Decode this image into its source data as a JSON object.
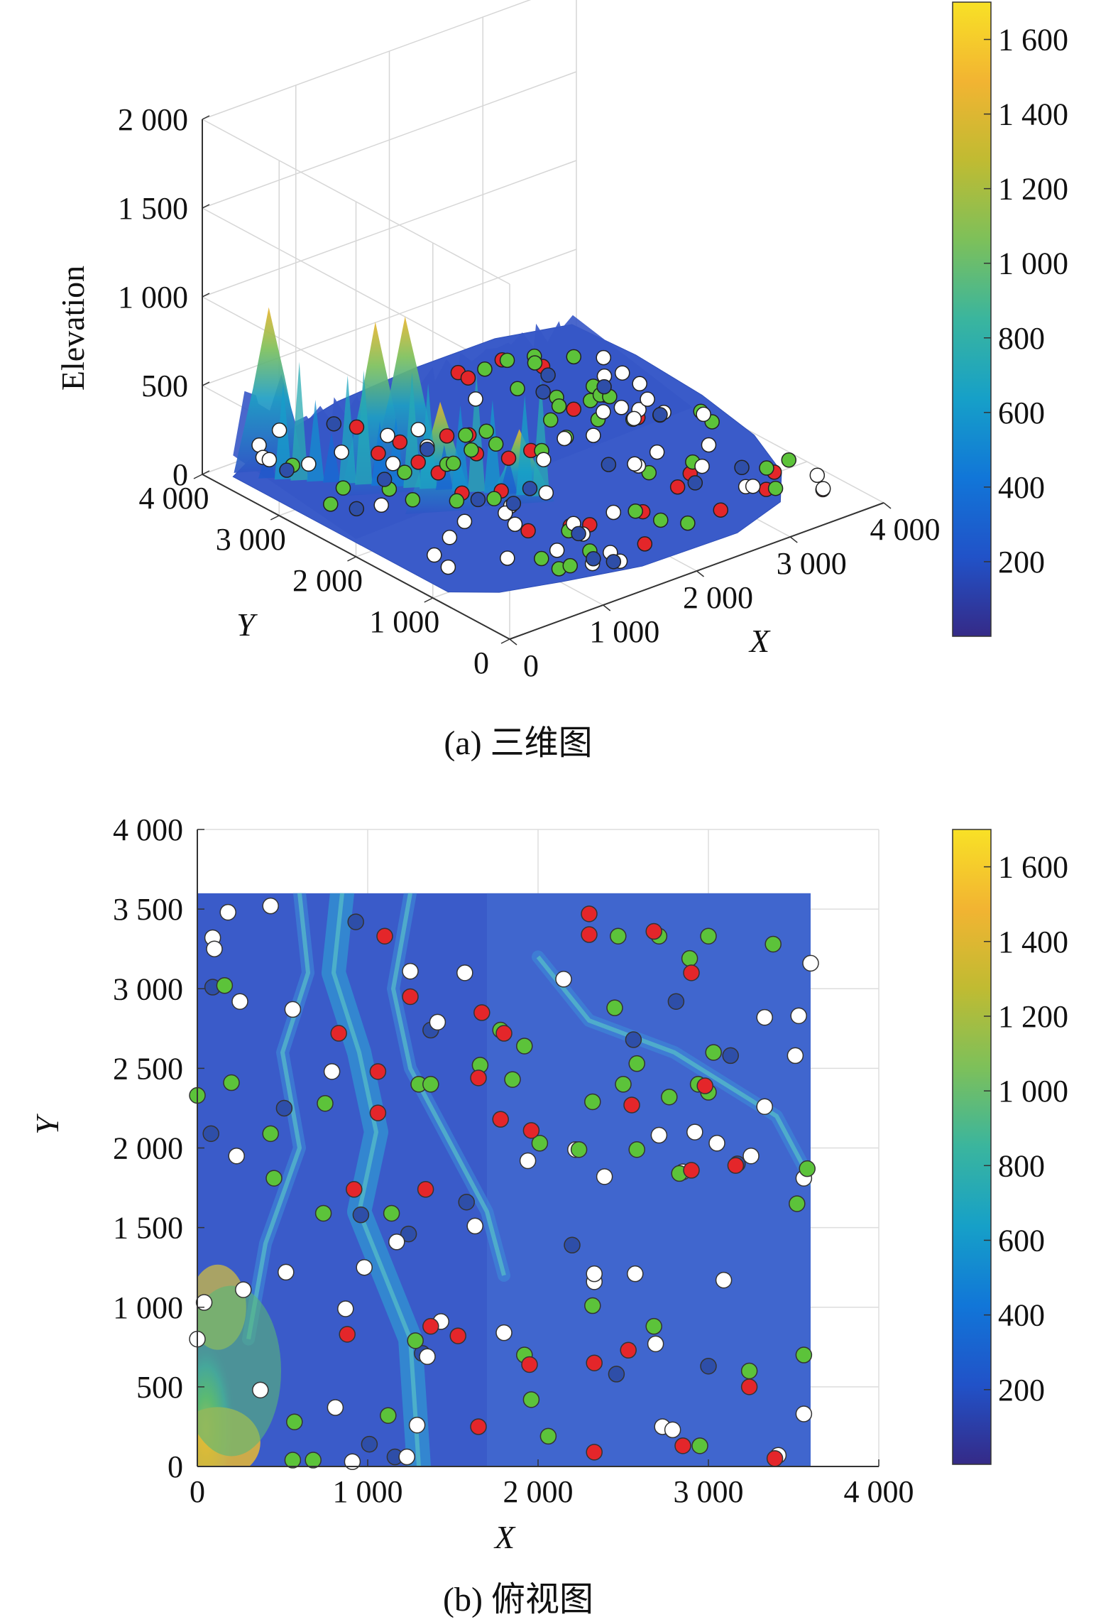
{
  "colors": {
    "colormap": [
      "#352a87",
      "#2152c8",
      "#1176d8",
      "#16a0c8",
      "#3ab59e",
      "#7dc05a",
      "#c0bb32",
      "#f2b432",
      "#f8e126"
    ],
    "marker_red": "#e4262a",
    "marker_green": "#5cc33a",
    "marker_white": "#ffffff",
    "marker_blue": "#2e4ea8",
    "terrain_base": "#3a5bc9"
  },
  "chart_data": [
    {
      "type": "surface3d",
      "caption": "(a) 三维图",
      "xlabel": "X",
      "ylabel": "Y",
      "zlabel": "Elevation",
      "xlim": [
        0,
        4000
      ],
      "ylim": [
        0,
        4000
      ],
      "zlim": [
        0,
        2000
      ],
      "xticks": [
        {
          "v": 0,
          "label": "0"
        },
        {
          "v": 1000,
          "label": "1 000"
        },
        {
          "v": 2000,
          "label": "2 000"
        },
        {
          "v": 3000,
          "label": "3 000"
        },
        {
          "v": 4000,
          "label": "4 000"
        }
      ],
      "yticks": [
        {
          "v": 0,
          "label": "0"
        },
        {
          "v": 1000,
          "label": "1 000"
        },
        {
          "v": 2000,
          "label": "2 000"
        },
        {
          "v": 3000,
          "label": "3 000"
        },
        {
          "v": 4000,
          "label": "4 000"
        }
      ],
      "zticks": [
        {
          "v": 0,
          "label": "0"
        },
        {
          "v": 500,
          "label": "500"
        },
        {
          "v": 1000,
          "label": "1 000"
        },
        {
          "v": 1500,
          "label": "1 500"
        },
        {
          "v": 2000,
          "label": "2 000"
        }
      ],
      "colorbar": {
        "range": [
          0,
          1700
        ],
        "ticks": [
          {
            "v": 200,
            "label": "200"
          },
          {
            "v": 400,
            "label": "400"
          },
          {
            "v": 600,
            "label": "600"
          },
          {
            "v": 800,
            "label": "800"
          },
          {
            "v": 1000,
            "label": "1 000"
          },
          {
            "v": 1200,
            "label": "1 200"
          },
          {
            "v": 1400,
            "label": "1 400"
          },
          {
            "v": 1600,
            "label": "1 600"
          }
        ]
      },
      "peaks": [
        {
          "x": 300,
          "y": 3500,
          "z": 1000
        },
        {
          "x": 700,
          "y": 2600,
          "z": 1050
        },
        {
          "x": 1100,
          "y": 2700,
          "z": 980
        },
        {
          "x": 900,
          "y": 2000,
          "z": 700
        },
        {
          "x": 1500,
          "y": 1700,
          "z": 500
        }
      ]
    },
    {
      "type": "scatter",
      "caption": "(b) 俯视图",
      "xlabel": "X",
      "ylabel": "Y",
      "xlim": [
        0,
        4000
      ],
      "ylim": [
        0,
        4000
      ],
      "xticks": [
        {
          "v": 0,
          "label": "0"
        },
        {
          "v": 1000,
          "label": "1 000"
        },
        {
          "v": 2000,
          "label": "2 000"
        },
        {
          "v": 3000,
          "label": "3 000"
        },
        {
          "v": 4000,
          "label": "4 000"
        }
      ],
      "yticks": [
        {
          "v": 0,
          "label": "0"
        },
        {
          "v": 500,
          "label": "500"
        },
        {
          "v": 1000,
          "label": "1 000"
        },
        {
          "v": 1500,
          "label": "1 500"
        },
        {
          "v": 2000,
          "label": "2 000"
        },
        {
          "v": 2500,
          "label": "2 500"
        },
        {
          "v": 3000,
          "label": "3 000"
        },
        {
          "v": 3500,
          "label": "3 500"
        },
        {
          "v": 4000,
          "label": "4 000"
        }
      ],
      "terrain_extent": {
        "x": [
          0,
          3600
        ],
        "y": [
          0,
          3600
        ]
      },
      "colorbar": {
        "range": [
          0,
          1700
        ],
        "ticks": [
          {
            "v": 200,
            "label": "200"
          },
          {
            "v": 400,
            "label": "400"
          },
          {
            "v": 600,
            "label": "600"
          },
          {
            "v": 800,
            "label": "800"
          },
          {
            "v": 1000,
            "label": "1 000"
          },
          {
            "v": 1200,
            "label": "1 200"
          },
          {
            "v": 1400,
            "label": "1 400"
          },
          {
            "v": 1600,
            "label": "1 600"
          }
        ]
      },
      "points": {
        "red": [
          [
            2300,
            3470
          ],
          [
            2300,
            3340
          ],
          [
            2680,
            3360
          ],
          [
            2900,
            3100
          ],
          [
            1100,
            3330
          ],
          [
            1250,
            2950
          ],
          [
            1670,
            2850
          ],
          [
            1800,
            2720
          ],
          [
            830,
            2720
          ],
          [
            1060,
            2480
          ],
          [
            1650,
            2440
          ],
          [
            2550,
            2270
          ],
          [
            1060,
            2220
          ],
          [
            1780,
            2180
          ],
          [
            1960,
            2110
          ],
          [
            2980,
            2390
          ],
          [
            2900,
            1860
          ],
          [
            3160,
            1890
          ],
          [
            920,
            1740
          ],
          [
            1340,
            1740
          ],
          [
            880,
            830
          ],
          [
            1370,
            880
          ],
          [
            1530,
            820
          ],
          [
            1950,
            640
          ],
          [
            2530,
            730
          ],
          [
            2330,
            650
          ],
          [
            3240,
            500
          ],
          [
            1650,
            250
          ],
          [
            2850,
            130
          ],
          [
            2330,
            90
          ],
          [
            3390,
            50
          ]
        ],
        "green": [
          [
            2470,
            3330
          ],
          [
            2710,
            3330
          ],
          [
            3000,
            3330
          ],
          [
            3380,
            3280
          ],
          [
            2890,
            3190
          ],
          [
            160,
            3020
          ],
          [
            2450,
            2880
          ],
          [
            1780,
            2740
          ],
          [
            1920,
            2640
          ],
          [
            3030,
            2600
          ],
          [
            1660,
            2520
          ],
          [
            2580,
            2530
          ],
          [
            200,
            2410
          ],
          [
            1300,
            2400
          ],
          [
            1370,
            2400
          ],
          [
            1850,
            2430
          ],
          [
            2500,
            2400
          ],
          [
            2770,
            2320
          ],
          [
            2940,
            2400
          ],
          [
            3000,
            2350
          ],
          [
            0,
            2330
          ],
          [
            750,
            2280
          ],
          [
            2320,
            2290
          ],
          [
            2010,
            2030
          ],
          [
            2240,
            1990
          ],
          [
            2580,
            1990
          ],
          [
            2830,
            1840
          ],
          [
            430,
            2090
          ],
          [
            450,
            1810
          ],
          [
            740,
            1590
          ],
          [
            1140,
            1590
          ],
          [
            3580,
            1870
          ],
          [
            3520,
            1650
          ],
          [
            2320,
            1010
          ],
          [
            2680,
            880
          ],
          [
            1280,
            790
          ],
          [
            1920,
            700
          ],
          [
            3240,
            600
          ],
          [
            3560,
            700
          ],
          [
            1960,
            420
          ],
          [
            1120,
            320
          ],
          [
            570,
            280
          ],
          [
            2060,
            190
          ],
          [
            2950,
            130
          ],
          [
            560,
            40
          ],
          [
            680,
            40
          ]
        ],
        "white": [
          [
            180,
            3480
          ],
          [
            430,
            3520
          ],
          [
            90,
            3320
          ],
          [
            100,
            3250
          ],
          [
            1250,
            3110
          ],
          [
            1570,
            3100
          ],
          [
            2150,
            3060
          ],
          [
            250,
            2920
          ],
          [
            560,
            2870
          ],
          [
            3330,
            2820
          ],
          [
            3530,
            2830
          ],
          [
            3600,
            3160
          ],
          [
            790,
            2480
          ],
          [
            1410,
            2790
          ],
          [
            3510,
            2580
          ],
          [
            2710,
            2080
          ],
          [
            2920,
            2100
          ],
          [
            3050,
            2030
          ],
          [
            3330,
            2260
          ],
          [
            2220,
            1990
          ],
          [
            1940,
            1920
          ],
          [
            2390,
            1820
          ],
          [
            3250,
            1950
          ],
          [
            3560,
            1810
          ],
          [
            230,
            1950
          ],
          [
            2850,
            1850
          ],
          [
            1170,
            1410
          ],
          [
            1630,
            1510
          ],
          [
            520,
            1220
          ],
          [
            980,
            1250
          ],
          [
            270,
            1110
          ],
          [
            2330,
            1160
          ],
          [
            2330,
            1210
          ],
          [
            2570,
            1210
          ],
          [
            3090,
            1170
          ],
          [
            40,
            1030
          ],
          [
            0,
            800
          ],
          [
            870,
            990
          ],
          [
            1430,
            910
          ],
          [
            1350,
            690
          ],
          [
            1800,
            840
          ],
          [
            2690,
            770
          ],
          [
            370,
            480
          ],
          [
            810,
            370
          ],
          [
            1290,
            260
          ],
          [
            2730,
            250
          ],
          [
            2790,
            230
          ],
          [
            3560,
            330
          ],
          [
            1230,
            60
          ],
          [
            3410,
            70
          ],
          [
            910,
            30
          ]
        ],
        "blue": [
          [
            90,
            3010
          ],
          [
            930,
            3420
          ],
          [
            1370,
            2740
          ],
          [
            2560,
            2680
          ],
          [
            2810,
            2920
          ],
          [
            3130,
            2580
          ],
          [
            80,
            2090
          ],
          [
            510,
            2250
          ],
          [
            3170,
            1900
          ],
          [
            960,
            1580
          ],
          [
            1580,
            1660
          ],
          [
            1240,
            1460
          ],
          [
            2200,
            1390
          ],
          [
            1320,
            710
          ],
          [
            3000,
            630
          ],
          [
            2460,
            580
          ],
          [
            1010,
            140
          ],
          [
            1160,
            60
          ]
        ]
      }
    }
  ]
}
